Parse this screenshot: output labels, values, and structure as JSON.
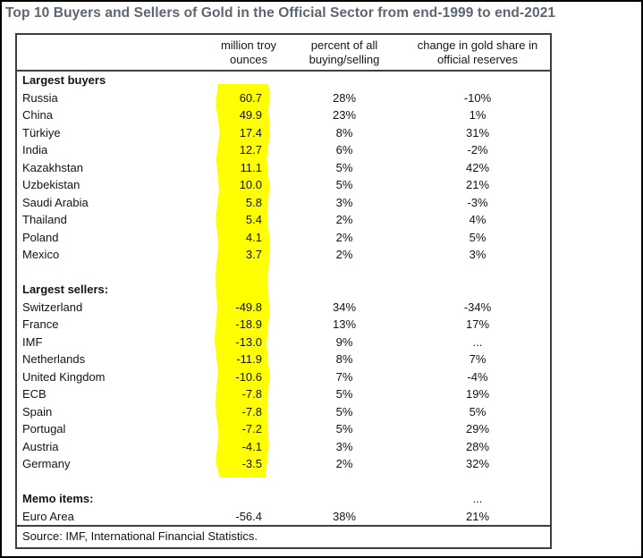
{
  "title": "Top 10 Buyers and Sellers of Gold in the Official Sector from end-1999 to end-2021",
  "colors": {
    "highlight": "#ffff00",
    "title_text": "#5b6673"
  },
  "table": {
    "headers": [
      {
        "line1": "million troy",
        "line2": "ounces"
      },
      {
        "line1": "percent of all",
        "line2": "buying/selling"
      },
      {
        "line1": "change in gold share in",
        "line2": "official reserves"
      }
    ],
    "sections": [
      {
        "label": "Largest buyers",
        "change": "",
        "rows": [
          {
            "name": "Russia",
            "mto": "60.7",
            "pct": "28%",
            "change": "-10%",
            "highlight": true
          },
          {
            "name": "China",
            "mto": "49.9",
            "pct": "23%",
            "change": "1%",
            "highlight": true
          },
          {
            "name": "Türkiye",
            "mto": "17.4",
            "pct": "8%",
            "change": "31%",
            "highlight": true
          },
          {
            "name": "India",
            "mto": "12.7",
            "pct": "6%",
            "change": "-2%",
            "highlight": true
          },
          {
            "name": "Kazakhstan",
            "mto": "11.1",
            "pct": "5%",
            "change": "42%",
            "highlight": true
          },
          {
            "name": "Uzbekistan",
            "mto": "10.0",
            "pct": "5%",
            "change": "21%",
            "highlight": true
          },
          {
            "name": "Saudi Arabia",
            "mto": "5.8",
            "pct": "3%",
            "change": "-3%",
            "highlight": true
          },
          {
            "name": "Thailand",
            "mto": "5.4",
            "pct": "2%",
            "change": "4%",
            "highlight": true
          },
          {
            "name": "Poland",
            "mto": "4.1",
            "pct": "2%",
            "change": "5%",
            "highlight": true
          },
          {
            "name": "Mexico",
            "mto": "3.7",
            "pct": "2%",
            "change": "3%",
            "highlight": true
          }
        ]
      },
      {
        "label": "Largest sellers:",
        "change": "",
        "rows": [
          {
            "name": "Switzerland",
            "mto": "-49.8",
            "pct": "34%",
            "change": "-34%",
            "highlight": true
          },
          {
            "name": "France",
            "mto": "-18.9",
            "pct": "13%",
            "change": "17%",
            "highlight": true
          },
          {
            "name": "IMF",
            "mto": "-13.0",
            "pct": "9%",
            "change": "...",
            "highlight": true
          },
          {
            "name": "Netherlands",
            "mto": "-11.9",
            "pct": "8%",
            "change": "7%",
            "highlight": true
          },
          {
            "name": "United Kingdom",
            "mto": "-10.6",
            "pct": "7%",
            "change": "-4%",
            "highlight": true
          },
          {
            "name": "ECB",
            "mto": "-7.8",
            "pct": "5%",
            "change": "19%",
            "highlight": true
          },
          {
            "name": "Spain",
            "mto": "-7.8",
            "pct": "5%",
            "change": "5%",
            "highlight": true
          },
          {
            "name": "Portugal",
            "mto": "-7.2",
            "pct": "5%",
            "change": "29%",
            "highlight": true
          },
          {
            "name": "Austria",
            "mto": "-4.1",
            "pct": "3%",
            "change": "28%",
            "highlight": true
          },
          {
            "name": "Germany",
            "mto": "-3.5",
            "pct": "2%",
            "change": "32%",
            "highlight": true
          }
        ]
      },
      {
        "label": "Memo items:",
        "change": "...",
        "rows": [
          {
            "name": "Euro Area",
            "mto": "-56.4",
            "pct": "38%",
            "change": "21%",
            "highlight": false
          }
        ]
      }
    ],
    "source": "Source: IMF, International Financial Statistics."
  }
}
